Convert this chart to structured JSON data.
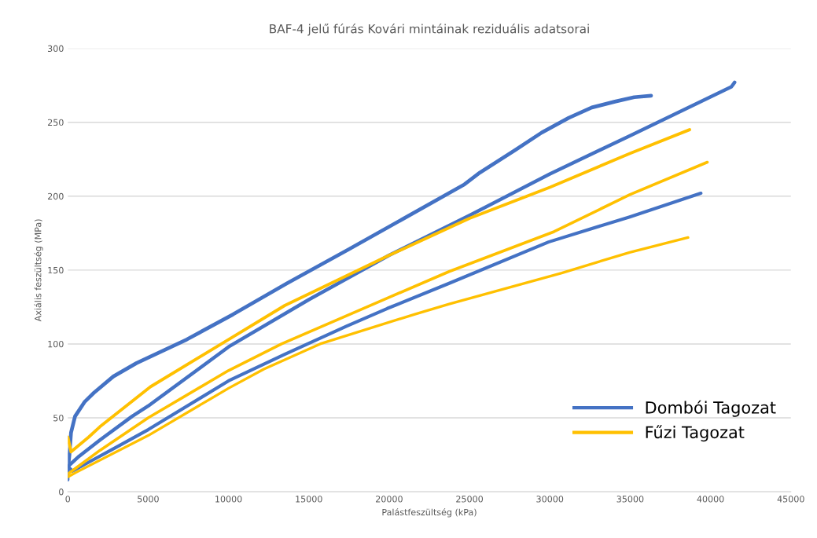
{
  "chart_data": {
    "type": "line",
    "title": "BAF-4 jelű fúrás Kovári mintáinak reziduális adatsorai",
    "xlabel": "Palástfeszültség (kPa)",
    "ylabel": "Axiális feszültség (MPa)",
    "xlim": [
      0,
      45000
    ],
    "xticks": [
      0,
      5000,
      10000,
      15000,
      20000,
      25000,
      30000,
      35000,
      40000,
      45000
    ],
    "ylim": [
      0,
      300
    ],
    "yticks": [
      0,
      50,
      100,
      150,
      200,
      250,
      300
    ],
    "grid": "y",
    "legend": "bottom right",
    "marker": "none",
    "line_style": "solid",
    "series": [
      {
        "name": "Dombói Tagozat",
        "color": "#4472c4",
        "x": [
          0,
          100,
          200,
          450,
          1060,
          1630,
          2830,
          4270,
          7400,
          10280,
          13640,
          17480,
          24690,
          25650,
          27810,
          29490,
          31170,
          32610,
          34050,
          35250,
          36300
        ],
        "values": [
          14,
          25,
          40,
          51,
          61,
          67,
          78,
          87,
          103,
          120,
          141,
          164,
          208,
          216,
          231,
          243,
          253,
          260,
          264,
          267,
          268
        ]
      },
      {
        "color": "#4472c4",
        "x": [
          0,
          700,
          2000,
          4000,
          5000,
          10000,
          15000,
          20000,
          25000,
          30000,
          35000,
          41300,
          41500
        ],
        "values": [
          17,
          24,
          35,
          51,
          58,
          98,
          130,
          160,
          187,
          215,
          241,
          274,
          277
        ]
      },
      {
        "color": "#4472c4",
        "x": [
          0,
          0,
          300,
          1300,
          3000,
          5000,
          10000,
          13500,
          17340,
          19880,
          23730,
          29920,
          34970,
          39400
        ],
        "values": [
          8,
          17,
          14,
          20,
          30,
          42,
          75,
          93,
          112,
          124,
          141,
          169,
          186,
          202
        ]
      },
      {
        "name": "Fűzi Tagozat",
        "color": "#ffc000",
        "x": [
          0,
          200,
          1300,
          2000,
          5140,
          10000,
          13500,
          20000,
          25000,
          30000,
          35000,
          38700
        ],
        "values": [
          37,
          27,
          37,
          44,
          71,
          103,
          126,
          160,
          185,
          206,
          229,
          245
        ]
      },
      {
        "color": "#ffc000",
        "x": [
          0,
          500,
          2000,
          5000,
          10000,
          13300,
          19880,
          23730,
          30260,
          34970,
          39800
        ],
        "values": [
          12,
          16,
          28,
          50,
          82,
          100,
          131,
          149,
          176,
          201,
          223
        ]
      },
      {
        "color": "#ffc000",
        "x": [
          0,
          500,
          5000,
          10000,
          12200,
          15700,
          21560,
          23730,
          30740,
          34970,
          38600
        ],
        "values": [
          10,
          13,
          38,
          70,
          83,
          100,
          120,
          127,
          148,
          162,
          172
        ]
      }
    ]
  }
}
